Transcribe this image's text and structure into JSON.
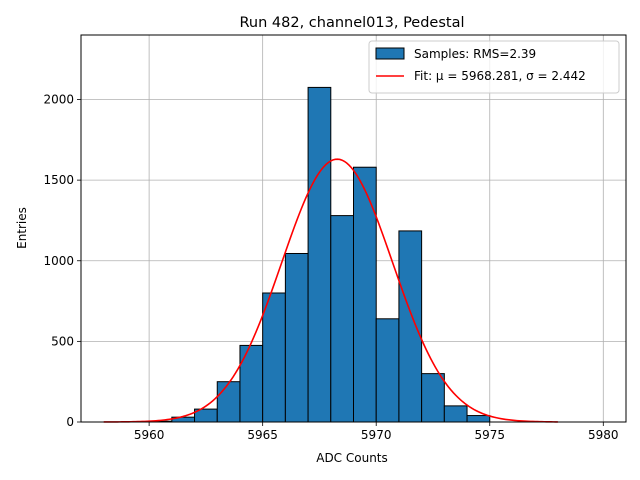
{
  "chart_data": {
    "type": "bar",
    "title": "Run 482, channel013, Pedestal",
    "xlabel": "ADC Counts",
    "ylabel": "Entries",
    "xlim": [
      5957,
      5981
    ],
    "ylim": [
      0,
      2400
    ],
    "xticks": [
      5960,
      5965,
      5970,
      5975,
      5980
    ],
    "yticks": [
      0,
      500,
      1000,
      1500,
      2000
    ],
    "grid": true,
    "legend_position": "top-right",
    "bin_width": 1,
    "bin_starts": [
      5960,
      5961,
      5962,
      5963,
      5964,
      5965,
      5966,
      5967,
      5968,
      5969,
      5970,
      5971,
      5972,
      5973,
      5974
    ],
    "counts": [
      5,
      30,
      80,
      250,
      475,
      800,
      1045,
      2075,
      1280,
      1580,
      640,
      1185,
      300,
      100,
      40
    ],
    "fit": {
      "mu": 5968.281,
      "sigma": 2.442,
      "amplitude": 1630,
      "x_range": [
        5958,
        5978
      ]
    },
    "series": [
      {
        "name": "Samples: RMS=2.39",
        "kind": "histogram",
        "color": "#1f77b4"
      },
      {
        "name": "Fit: μ = 5968.281, σ = 2.442",
        "kind": "line",
        "color": "#ff0000"
      }
    ]
  }
}
